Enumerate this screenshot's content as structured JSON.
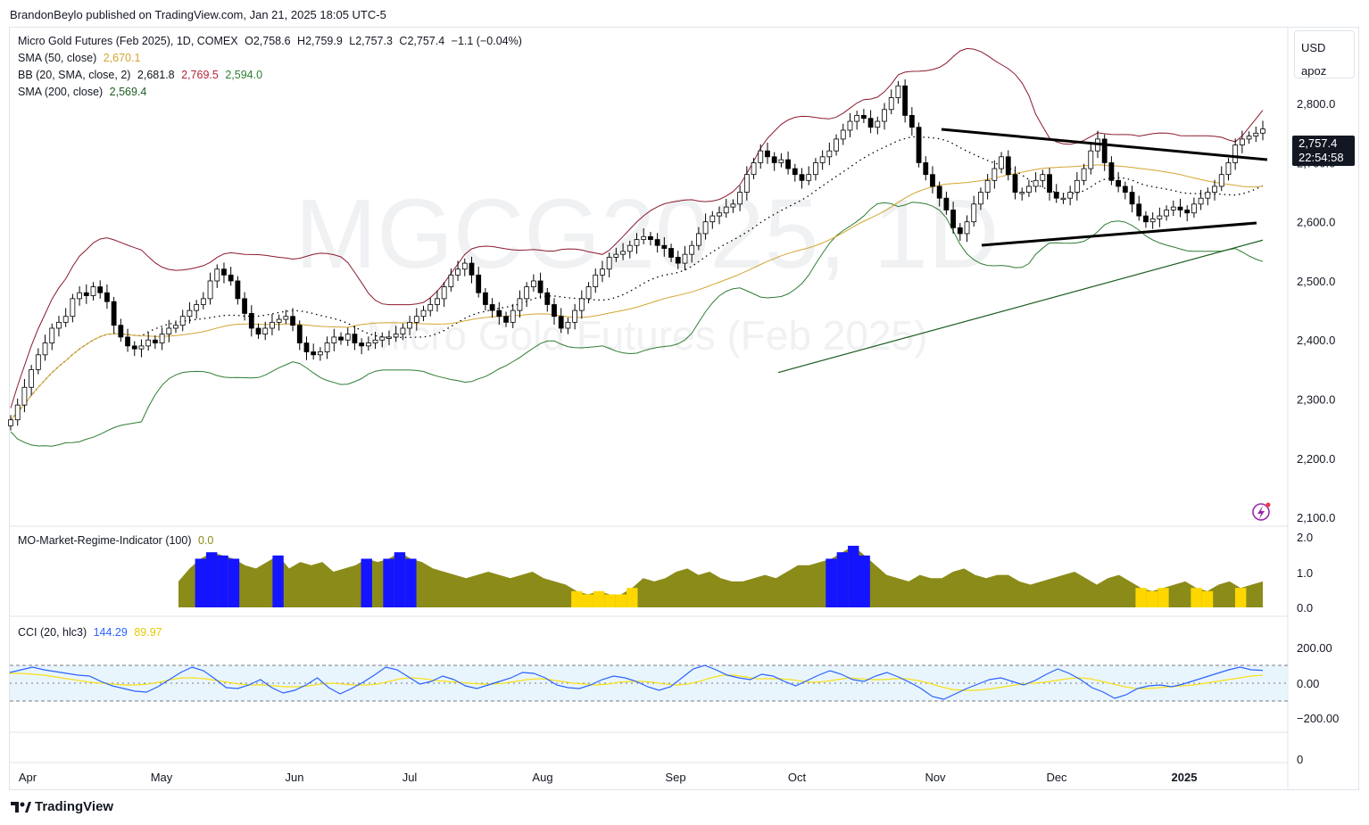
{
  "header": {
    "text": "BrandonBeylo published on TradingView.com, Jan 21, 2025 18:05 UTC-5"
  },
  "legend": {
    "symbol": "Micro Gold Futures (Feb 2025), 1D, COMEX",
    "open_label": "O",
    "open": "2,758.6",
    "high_label": "H",
    "high": "2,759.9",
    "low_label": "L",
    "low": "2,757.3",
    "close_label": "C",
    "close": "2,757.4",
    "change": "−1.1 (−0.04%)",
    "sma50_label": "SMA (50, close)",
    "sma50_value": "2,670.1",
    "bb_label": "BB (20, SMA, close, 2)",
    "bb_basis": "2,681.8",
    "bb_upper": "2,769.5",
    "bb_lower": "2,594.0",
    "sma200_label": "SMA (200, close)",
    "sma200_value": "2,569.4",
    "mo_label": "MO-Market-Regime-Indicator (100)",
    "mo_value": "0.0",
    "cci_label": "CCI (20, hlc3)",
    "cci_value": "144.29",
    "cci_ma": "89.97"
  },
  "watermark": {
    "symbol": "MGCG2025, 1D",
    "name": "Micro Gold Futures (Feb 2025)"
  },
  "price_scale": {
    "currency": "USD",
    "extra": "apoz",
    "last_price": "2,757.4",
    "countdown": "22:54:58"
  },
  "footer": {
    "brand": "TradingView"
  },
  "colors": {
    "up": "#ffffff",
    "down": "#000000",
    "bb_upper": "#8b1a2e",
    "bb_lower": "#2e7d32",
    "bb_basis": "#000000",
    "sma50": "#d4a531",
    "sma200": "#1b5e20",
    "cci": "#2962ff",
    "cci_ma": "#f7e017",
    "regime_olive": "#8b8b1a",
    "regime_blue": "#1414ff",
    "regime_yellow": "#ffd700"
  },
  "chart_data": [
    {
      "type": "candlestick",
      "title": "Micro Gold Futures (Feb 2025), 1D, COMEX",
      "x_tick_labels": [
        "Apr",
        "May",
        "Jun",
        "Jul",
        "Aug",
        "Sep",
        "Oct",
        "Nov",
        "Dec",
        "2025"
      ],
      "y_tick_labels": [
        "2,100.0",
        "2,200.0",
        "2,300.0",
        "2,400.0",
        "2,500.0",
        "2,600.0",
        "2,700.0",
        "2,800.0"
      ],
      "ylim": [
        2085,
        2930
      ],
      "close_series": [
        2265,
        2290,
        2320,
        2350,
        2375,
        2395,
        2420,
        2430,
        2440,
        2470,
        2480,
        2475,
        2490,
        2480,
        2465,
        2425,
        2405,
        2390,
        2385,
        2390,
        2400,
        2395,
        2410,
        2420,
        2425,
        2440,
        2450,
        2460,
        2470,
        2500,
        2520,
        2510,
        2500,
        2470,
        2445,
        2420,
        2410,
        2420,
        2430,
        2435,
        2440,
        2425,
        2395,
        2380,
        2375,
        2380,
        2395,
        2405,
        2400,
        2410,
        2395,
        2390,
        2395,
        2400,
        2405,
        2405,
        2410,
        2420,
        2430,
        2440,
        2450,
        2460,
        2470,
        2490,
        2510,
        2520,
        2530,
        2510,
        2480,
        2460,
        2450,
        2440,
        2430,
        2450,
        2470,
        2490,
        2500,
        2480,
        2460,
        2440,
        2420,
        2430,
        2450,
        2470,
        2490,
        2510,
        2520,
        2540,
        2545,
        2550,
        2560,
        2570,
        2575,
        2570,
        2560,
        2555,
        2540,
        2530,
        2545,
        2560,
        2580,
        2600,
        2610,
        2615,
        2625,
        2630,
        2650,
        2680,
        2700,
        2720,
        2710,
        2700,
        2705,
        2690,
        2680,
        2670,
        2680,
        2700,
        2710,
        2720,
        2740,
        2755,
        2770,
        2780,
        2775,
        2760,
        2770,
        2790,
        2810,
        2830,
        2780,
        2760,
        2700,
        2680,
        2660,
        2640,
        2620,
        2590,
        2580,
        2600,
        2630,
        2650,
        2670,
        2690,
        2710,
        2680,
        2650,
        2650,
        2660,
        2670,
        2680,
        2650,
        2640,
        2640,
        2650,
        2670,
        2690,
        2720,
        2740,
        2700,
        2670,
        2660,
        2650,
        2630,
        2610,
        2600,
        2605,
        2610,
        2620,
        2625,
        2620,
        2615,
        2630,
        2640,
        2650,
        2660,
        2680,
        2700,
        2730,
        2740,
        2745,
        2750,
        2757
      ]
    },
    {
      "type": "line",
      "series": [
        {
          "name": "SMA (200, close)",
          "values": [
            2370,
            2569
          ]
        }
      ],
      "note": "SMA 200 begins mid-chart (late Sep) and rises to 2,569.4"
    },
    {
      "type": "area",
      "title": "MO-Market-Regime-Indicator (100)",
      "y_tick_labels": [
        "0.0",
        "1.0",
        "2.0"
      ],
      "ylim": [
        0,
        2.2
      ],
      "x_range": [
        200,
        1415
      ],
      "values": [
        0.8,
        1.2,
        1.5,
        1.7,
        1.6,
        1.5,
        1.3,
        1.2,
        1.4,
        1.6,
        1.2,
        1.4,
        1.3,
        1.4,
        1.1,
        1.2,
        1.3,
        1.5,
        1.4,
        1.5,
        1.7,
        1.5,
        1.4,
        1.2,
        1.1,
        1.0,
        0.9,
        1.0,
        1.1,
        1.0,
        0.9,
        1.0,
        1.1,
        0.9,
        0.8,
        0.7,
        0.5,
        0.4,
        0.5,
        0.4,
        0.4,
        0.6,
        0.9,
        0.8,
        0.9,
        1.1,
        1.2,
        1.0,
        1.1,
        0.9,
        0.8,
        0.8,
        0.9,
        1.0,
        0.9,
        1.1,
        1.3,
        1.3,
        1.4,
        1.5,
        1.7,
        1.9,
        1.6,
        1.3,
        1.0,
        0.9,
        0.8,
        1.0,
        0.9,
        0.9,
        1.1,
        1.2,
        1.0,
        0.9,
        1.0,
        1.0,
        0.8,
        0.7,
        0.8,
        0.9,
        1.0,
        1.1,
        0.9,
        0.7,
        0.9,
        1.0,
        0.8,
        0.6,
        0.5,
        0.6,
        0.7,
        0.8,
        0.6,
        0.5,
        0.7,
        0.8,
        0.6,
        0.7,
        0.8
      ]
    },
    {
      "type": "line",
      "title": "CCI (20, hlc3)",
      "y_tick_labels": [
        "200.00",
        "0.00",
        "−200.00"
      ],
      "ylim": [
        -300,
        300
      ],
      "series": [
        {
          "name": "CCI (20, hlc3)",
          "values": [
            120,
            150,
            180,
            150,
            130,
            110,
            90,
            80,
            20,
            -30,
            -60,
            -90,
            -100,
            -40,
            40,
            120,
            180,
            140,
            50,
            -50,
            -60,
            -20,
            40,
            -50,
            -110,
            -80,
            -20,
            60,
            -50,
            -120,
            -60,
            10,
            90,
            180,
            150,
            70,
            -10,
            20,
            80,
            40,
            -30,
            -60,
            -20,
            20,
            60,
            120,
            110,
            60,
            -20,
            -50,
            -60,
            -20,
            40,
            80,
            60,
            20,
            -40,
            -80,
            -40,
            60,
            160,
            200,
            150,
            90,
            60,
            40,
            100,
            80,
            20,
            -30,
            30,
            90,
            140,
            100,
            40,
            20,
            80,
            120,
            70,
            10,
            -60,
            -150,
            -180,
            -120,
            -60,
            -10,
            40,
            60,
            20,
            -20,
            30,
            100,
            160,
            110,
            40,
            -50,
            -100,
            -170,
            -130,
            -60,
            -30,
            -20,
            -40,
            -10,
            30,
            70,
            110,
            150,
            180,
            150,
            144
          ]
        },
        {
          "name": "CCI MA",
          "values": [
            110,
            110,
            100,
            90,
            70,
            50,
            30,
            10,
            0,
            -10,
            -20,
            -20,
            -10,
            10,
            40,
            60,
            60,
            50,
            30,
            10,
            -10,
            -20,
            -20,
            -30,
            -40,
            -40,
            -30,
            -10,
            0,
            -10,
            -20,
            -20,
            -10,
            20,
            50,
            60,
            50,
            30,
            20,
            10,
            0,
            -10,
            -10,
            0,
            20,
            40,
            50,
            40,
            20,
            0,
            -10,
            -20,
            -10,
            10,
            20,
            20,
            10,
            -10,
            -20,
            -10,
            20,
            60,
            90,
            90,
            70,
            50,
            50,
            50,
            40,
            20,
            10,
            20,
            40,
            60,
            50,
            40,
            40,
            50,
            50,
            30,
            0,
            -40,
            -70,
            -80,
            -80,
            -70,
            -50,
            -30,
            -10,
            0,
            10,
            30,
            50,
            60,
            50,
            20,
            -10,
            -40,
            -60,
            -60,
            -50,
            -40,
            -30,
            -20,
            0,
            20,
            40,
            60,
            80,
            89.97
          ]
        }
      ]
    }
  ]
}
